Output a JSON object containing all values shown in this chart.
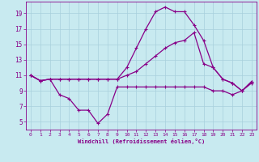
{
  "xlabel": "Windchill (Refroidissement éolien,°C)",
  "bg_color": "#c8eaf0",
  "grid_color": "#a8d0dc",
  "line_color": "#880088",
  "xlim": [
    -0.5,
    23.5
  ],
  "ylim": [
    4.0,
    20.5
  ],
  "xticks": [
    0,
    1,
    2,
    3,
    4,
    5,
    6,
    7,
    8,
    9,
    10,
    11,
    12,
    13,
    14,
    15,
    16,
    17,
    18,
    19,
    20,
    21,
    22,
    23
  ],
  "yticks": [
    5,
    7,
    9,
    11,
    13,
    15,
    17,
    19
  ],
  "curve1_x": [
    0,
    1,
    2,
    3,
    4,
    5,
    6,
    7,
    8,
    9,
    10,
    11,
    12,
    13,
    14,
    15,
    16,
    17,
    18,
    19,
    20,
    21,
    22,
    23
  ],
  "curve1_y": [
    11.0,
    10.3,
    10.5,
    8.5,
    8.0,
    6.5,
    6.5,
    4.8,
    6.0,
    9.5,
    9.5,
    9.5,
    9.5,
    9.5,
    9.5,
    9.5,
    9.5,
    9.5,
    9.5,
    9.0,
    9.0,
    8.5,
    9.0,
    10.0
  ],
  "curve2_x": [
    0,
    1,
    2,
    3,
    4,
    5,
    6,
    7,
    8,
    9,
    10,
    11,
    12,
    13,
    14,
    15,
    16,
    17,
    18,
    19,
    20,
    21,
    22,
    23
  ],
  "curve2_y": [
    11.0,
    10.3,
    10.5,
    10.5,
    10.5,
    10.5,
    10.5,
    10.5,
    10.5,
    10.5,
    11.0,
    11.5,
    12.5,
    13.5,
    14.5,
    15.2,
    15.5,
    16.5,
    12.5,
    12.0,
    10.5,
    10.0,
    9.0,
    10.2
  ],
  "curve3_x": [
    0,
    1,
    2,
    3,
    4,
    5,
    6,
    7,
    8,
    9,
    10,
    11,
    12,
    13,
    14,
    15,
    16,
    17,
    18,
    19,
    20,
    21,
    22,
    23
  ],
  "curve3_y": [
    11.0,
    10.3,
    10.5,
    10.5,
    10.5,
    10.5,
    10.5,
    10.5,
    10.5,
    10.5,
    12.0,
    14.5,
    17.0,
    19.2,
    19.8,
    19.2,
    19.2,
    17.5,
    15.5,
    12.0,
    10.5,
    10.0,
    9.0,
    10.2
  ]
}
